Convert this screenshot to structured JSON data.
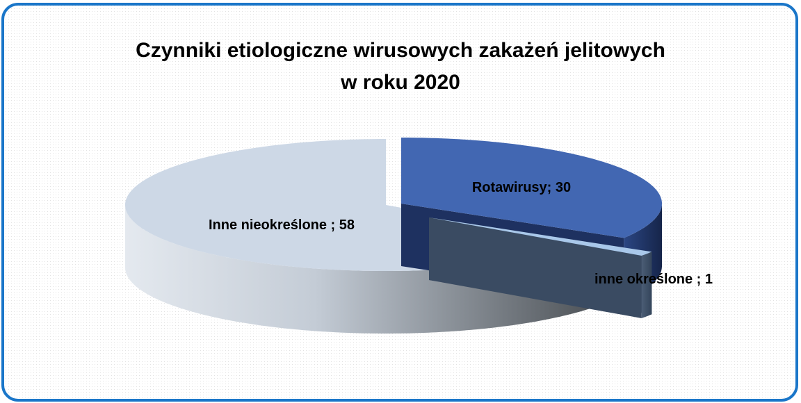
{
  "chart_data": {
    "type": "pie3d",
    "title": "Czynniki etiologiczne wirusowych zakażeń jelitowych\nw roku 2020",
    "values": [
      30,
      1,
      58
    ],
    "value_labels": [
      "Rotawirusy; 30",
      "inne określone ; 1",
      "Inne nieokreślone ; 58"
    ],
    "colors": [
      "#4267b2",
      "#a9c8ea",
      "#cdd8e6"
    ]
  }
}
